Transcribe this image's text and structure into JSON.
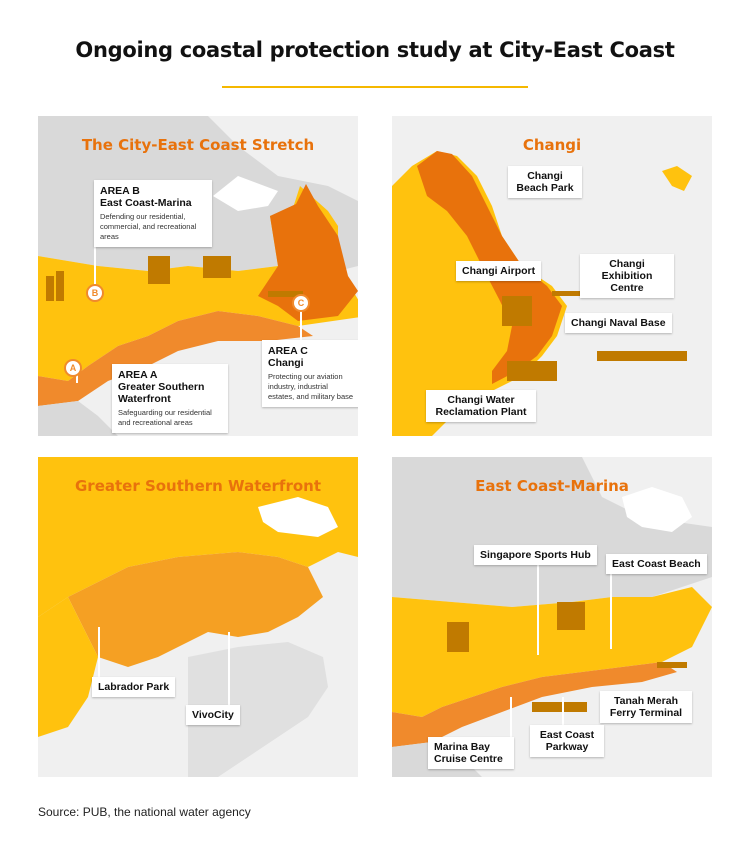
{
  "title": "Ongoing coastal protection study at City-East Coast",
  "source": "Source: PUB, the national water agency",
  "colors": {
    "accent": "#f5b800",
    "orange": "#e8720c",
    "land": "#ffc20e",
    "coast": "#f08a2c",
    "grey": "#d9d9d9",
    "sea": "#f0f0f0"
  },
  "panels": {
    "city_east_coast": {
      "title": "The City-East Coast Stretch",
      "area_b": {
        "marker": "B",
        "heading_line1": "AREA B",
        "heading_line2": "East Coast-Marina",
        "desc": "Defending our residential, commercial, and recreational areas"
      },
      "area_a": {
        "marker": "A",
        "heading_line1": "AREA A",
        "heading_line2": "Greater Southern",
        "heading_line3": "Waterfront",
        "desc": "Safeguarding our residential and recreational areas"
      },
      "area_c": {
        "marker": "C",
        "heading_line1": "AREA C",
        "heading_line2": "Changi",
        "desc": "Protecting our aviation industry, industrial estates, and military base"
      }
    },
    "changi": {
      "title": "Changi",
      "labels": {
        "beach_park": "Changi Beach Park",
        "airport": "Changi Airport",
        "exhibition": "Changi Exhibition Centre",
        "naval_base": "Changi Naval Base",
        "water_plant": "Changi Water Reclamation Plant"
      }
    },
    "greater_southern": {
      "title": "Greater Southern Waterfront",
      "labels": {
        "labrador": "Labrador Park",
        "vivocity": "VivoCity"
      }
    },
    "east_coast_marina": {
      "title": "East Coast-Marina",
      "labels": {
        "sports_hub": "Singapore Sports Hub",
        "beach": "East Coast Beach",
        "tanah_merah": "Tanah Merah Ferry Terminal",
        "parkway": "East Coast Parkway",
        "cruise": "Marina Bay Cruise Centre"
      }
    }
  }
}
